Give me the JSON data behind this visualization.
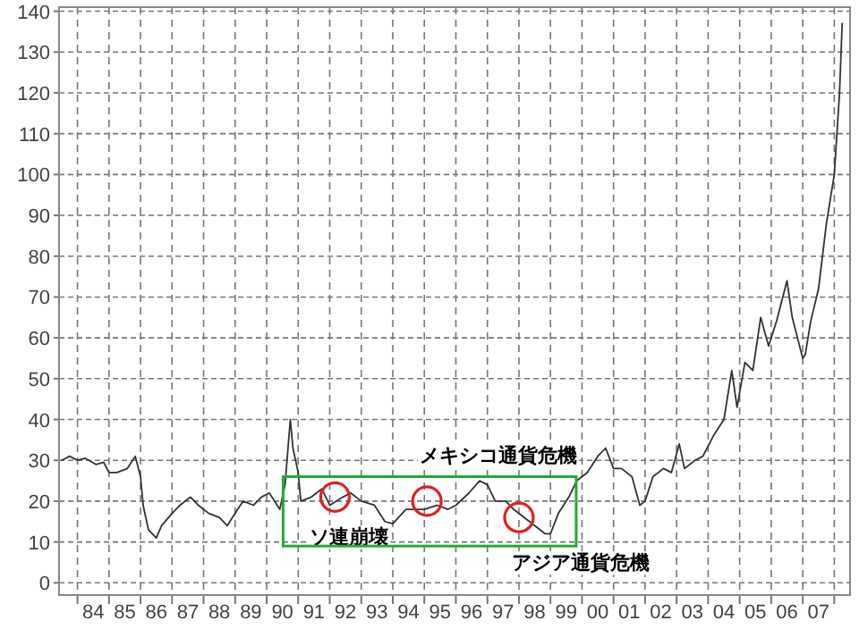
{
  "chart_data": {
    "type": "line",
    "x": [
      "1983-07",
      "1983-10",
      "1984-01",
      "1984-04",
      "1984-08",
      "1984-11",
      "1985-01",
      "1985-04",
      "1985-08",
      "1985-11",
      "1986-01",
      "1986-02",
      "1986-04",
      "1986-07",
      "1986-09",
      "1987-01",
      "1987-04",
      "1987-08",
      "1987-11",
      "1988-03",
      "1988-07",
      "1988-10",
      "1989-01",
      "1989-04",
      "1989-08",
      "1989-11",
      "1990-02",
      "1990-06",
      "1990-08",
      "1990-10",
      "1990-11",
      "1991-01",
      "1991-02",
      "1991-06",
      "1991-10",
      "1992-01",
      "1992-06",
      "1992-09",
      "1993-01",
      "1993-06",
      "1993-10",
      "1994-01",
      "1994-06",
      "1994-09",
      "1995-01",
      "1995-06",
      "1995-10",
      "1996-01",
      "1996-06",
      "1996-10",
      "1997-01",
      "1997-04",
      "1997-08",
      "1997-11",
      "1998-03",
      "1998-07",
      "1998-11",
      "1999-01",
      "1999-04",
      "1999-08",
      "1999-11",
      "2000-03",
      "2000-07",
      "2000-10",
      "2001-01",
      "2001-04",
      "2001-08",
      "2001-11",
      "2002-01",
      "2002-04",
      "2002-08",
      "2002-11",
      "2003-02",
      "2003-04",
      "2003-08",
      "2003-11",
      "2004-03",
      "2004-07",
      "2004-10",
      "2004-12",
      "2005-03",
      "2005-06",
      "2005-09",
      "2005-12",
      "2006-03",
      "2006-07",
      "2006-09",
      "2006-11",
      "2007-01",
      "2007-02",
      "2007-04",
      "2007-07",
      "2007-10",
      "2008-01",
      "2008-03",
      "2008-04"
    ],
    "series": [
      {
        "color": "#333333",
        "values": [
          30,
          31,
          30,
          30.5,
          29,
          29.5,
          27,
          27,
          28,
          31,
          26,
          19,
          13,
          11,
          14,
          17,
          19,
          21,
          19,
          17,
          16,
          14,
          17,
          20,
          19,
          21,
          22,
          18,
          24,
          40,
          33,
          27,
          20,
          21,
          23,
          19,
          21,
          22,
          20,
          19,
          15,
          14.5,
          18,
          18,
          18,
          19,
          18,
          19,
          22,
          25,
          24,
          20,
          20,
          18,
          16,
          14,
          12,
          12,
          17,
          21,
          25,
          27,
          31,
          33,
          28,
          28,
          26,
          19,
          20,
          26,
          28,
          27,
          34,
          28,
          30,
          31,
          36,
          40,
          52,
          43,
          54,
          52,
          65,
          58,
          64,
          74,
          65,
          60,
          55,
          56,
          64,
          72,
          88,
          100,
          120,
          137
        ]
      }
    ],
    "xlim": [
      "1983-06-01",
      "2008-07-01"
    ],
    "xticks": [
      {
        "value": "1984-01-01",
        "label": null
      },
      {
        "value": "1984-07-01",
        "label": "84"
      },
      {
        "value": "1985-01-01",
        "label": null
      },
      {
        "value": "1985-07-01",
        "label": "85"
      },
      {
        "value": "1986-01-01",
        "label": null
      },
      {
        "value": "1986-07-01",
        "label": "86"
      },
      {
        "value": "1987-01-01",
        "label": null
      },
      {
        "value": "1987-07-01",
        "label": "87"
      },
      {
        "value": "1988-01-01",
        "label": null
      },
      {
        "value": "1988-07-01",
        "label": "88"
      },
      {
        "value": "1989-01-01",
        "label": null
      },
      {
        "value": "1989-07-01",
        "label": "89"
      },
      {
        "value": "1990-01-01",
        "label": null
      },
      {
        "value": "1990-07-01",
        "label": "90"
      },
      {
        "value": "1991-01-01",
        "label": null
      },
      {
        "value": "1991-07-01",
        "label": "91"
      },
      {
        "value": "1992-01-01",
        "label": null
      },
      {
        "value": "1992-07-01",
        "label": "92"
      },
      {
        "value": "1993-01-01",
        "label": null
      },
      {
        "value": "1993-07-01",
        "label": "93"
      },
      {
        "value": "1994-01-01",
        "label": null
      },
      {
        "value": "1994-07-01",
        "label": "94"
      },
      {
        "value": "1995-01-01",
        "label": null
      },
      {
        "value": "1995-07-01",
        "label": "95"
      },
      {
        "value": "1996-01-01",
        "label": null
      },
      {
        "value": "1996-07-01",
        "label": "96"
      },
      {
        "value": "1997-01-01",
        "label": null
      },
      {
        "value": "1997-07-01",
        "label": "97"
      },
      {
        "value": "1998-01-01",
        "label": null
      },
      {
        "value": "1998-07-01",
        "label": "98"
      },
      {
        "value": "1999-01-01",
        "label": null
      },
      {
        "value": "1999-07-01",
        "label": "99"
      },
      {
        "value": "2000-01-01",
        "label": null
      },
      {
        "value": "2000-07-01",
        "label": "00"
      },
      {
        "value": "2001-01-01",
        "label": null
      },
      {
        "value": "2001-07-01",
        "label": "01"
      },
      {
        "value": "2002-01-01",
        "label": null
      },
      {
        "value": "2002-07-01",
        "label": "02"
      },
      {
        "value": "2003-01-01",
        "label": null
      },
      {
        "value": "2003-07-01",
        "label": "03"
      },
      {
        "value": "2004-01-01",
        "label": null
      },
      {
        "value": "2004-07-01",
        "label": "04"
      },
      {
        "value": "2005-01-01",
        "label": null
      },
      {
        "value": "2005-07-01",
        "label": "05"
      },
      {
        "value": "2006-01-01",
        "label": null
      },
      {
        "value": "2006-07-01",
        "label": "06"
      },
      {
        "value": "2007-01-01",
        "label": null
      },
      {
        "value": "2007-07-01",
        "label": "07"
      },
      {
        "value": "2008-01-01",
        "label": null
      }
    ],
    "ylim": [
      -3,
      141
    ],
    "yticks": [
      0,
      10,
      20,
      30,
      40,
      50,
      60,
      70,
      80,
      90,
      100,
      110,
      120,
      130,
      140
    ],
    "grid": true,
    "annotations": [
      {
        "text": "ソ連崩壊",
        "x": "1992-03",
        "y": 21
      },
      {
        "text": "メキシコ通貨危機",
        "x": "1995-02",
        "y": 20
      },
      {
        "text": "アジア通貨危機",
        "x": "1998-01",
        "y": 16
      }
    ]
  }
}
